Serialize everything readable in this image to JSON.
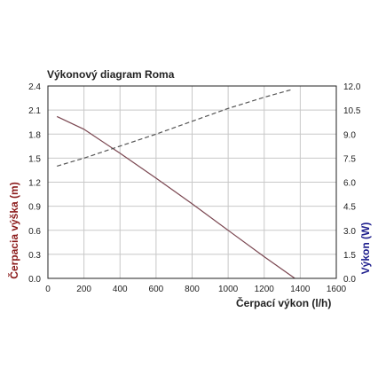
{
  "chart_data": {
    "type": "line",
    "title": "Výkonový diagram Roma",
    "xlabel": "Čerpací výkon (l/h)",
    "ylabel_left": "Čerpacia výška (m)",
    "ylabel_right": "Výkon (W)",
    "xlim": [
      0,
      1600
    ],
    "ylim_left": [
      0,
      2.4
    ],
    "ylim_right": [
      0,
      12
    ],
    "x_ticks": [
      "0",
      "200",
      "400",
      "600",
      "800",
      "1000",
      "1200",
      "1400",
      "1600"
    ],
    "y_left_ticks": [
      "0.0",
      "0.3",
      "0.6",
      "0.9",
      "1.2",
      "1.5",
      "1.8",
      "2.1",
      "2.4"
    ],
    "y_right_ticks": [
      "0.0",
      "1.5",
      "3.0",
      "4.5",
      "6.0",
      "7.5",
      "9.0",
      "10.5",
      "12.0"
    ],
    "grid": true,
    "colors": {
      "left_axis": "#8b1a1a",
      "right_axis": "#1c1c8c",
      "series_head": "#7a4650",
      "series_power": "#555555",
      "grid": "#c8c8c8"
    },
    "series": [
      {
        "axis": "left",
        "style": "solid",
        "x": [
          50,
          200,
          400,
          600,
          800,
          1000,
          1200,
          1370
        ],
        "y": [
          2.02,
          1.86,
          1.56,
          1.25,
          0.93,
          0.6,
          0.27,
          0.0
        ]
      },
      {
        "axis": "right",
        "style": "dashed",
        "x": [
          50,
          200,
          400,
          600,
          800,
          1000,
          1200,
          1360
        ],
        "y": [
          7.0,
          7.5,
          8.25,
          9.0,
          9.8,
          10.6,
          11.3,
          11.8
        ]
      }
    ]
  }
}
